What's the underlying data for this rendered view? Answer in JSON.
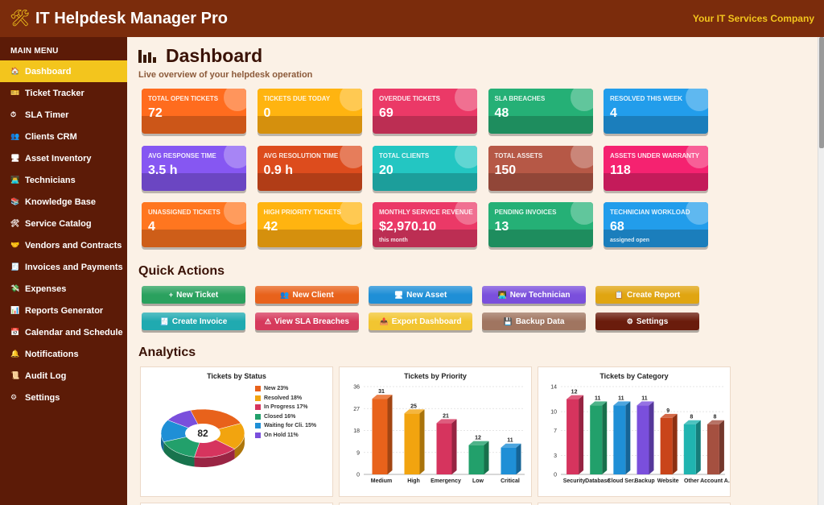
{
  "header": {
    "title": "IT Helpdesk Manager Pro",
    "company": "Your IT Services Company",
    "logo_icon": "tools-icon"
  },
  "sidebar": {
    "menu_title": "MAIN MENU",
    "items": [
      {
        "label": "Dashboard",
        "icon": "🏠",
        "active": true
      },
      {
        "label": "Ticket Tracker",
        "icon": "🎫"
      },
      {
        "label": "SLA Timer",
        "icon": "⏱"
      },
      {
        "label": "Clients CRM",
        "icon": "👥"
      },
      {
        "label": "Asset Inventory",
        "icon": "🖥"
      },
      {
        "label": "Technicians",
        "icon": "👨‍💻"
      },
      {
        "label": "Knowledge Base",
        "icon": "📚"
      },
      {
        "label": "Service Catalog",
        "icon": "🛠"
      },
      {
        "label": "Vendors and Contracts",
        "icon": "🤝"
      },
      {
        "label": "Invoices and Payments",
        "icon": "🧾"
      },
      {
        "label": "Expenses",
        "icon": "💸"
      },
      {
        "label": "Reports Generator",
        "icon": "📊"
      },
      {
        "label": "Calendar and Schedule",
        "icon": "📅"
      },
      {
        "label": "Notifications",
        "icon": "🔔"
      },
      {
        "label": "Audit Log",
        "icon": "📜"
      },
      {
        "label": "Settings",
        "icon": "⚙"
      }
    ]
  },
  "page": {
    "title": "Dashboard",
    "subtitle": "Live overview of your helpdesk operation"
  },
  "kpis": [
    {
      "label": "Total Open Tickets",
      "value": "72",
      "color": "#e8621b"
    },
    {
      "label": "Tickets Due Today",
      "value": "0",
      "color": "#f2a40f"
    },
    {
      "label": "Overdue Tickets",
      "value": "69",
      "color": "#d6345e"
    },
    {
      "label": "SLA Breaches",
      "value": "48",
      "color": "#22a06b"
    },
    {
      "label": "Resolved This Week",
      "value": "4",
      "color": "#1f8fd6"
    },
    {
      "label": "Avg Response Time",
      "value": "3.5 h",
      "color": "#7a4fdc"
    },
    {
      "label": "Avg Resolution Time",
      "value": "0.9 h",
      "color": "#c9451a"
    },
    {
      "label": "Total Clients",
      "value": "20",
      "color": "#20b4b0"
    },
    {
      "label": "Total Assets",
      "value": "150",
      "color": "#a55040"
    },
    {
      "label": "Assets Under Warranty",
      "value": "118",
      "color": "#df1f66"
    },
    {
      "label": "Unassigned Tickets",
      "value": "4",
      "color": "#ea6b1c"
    },
    {
      "label": "High Priority Tickets",
      "value": "42",
      "color": "#f2a40f"
    },
    {
      "label": "Monthly Service Revenue",
      "value": "$2,970.10",
      "color": "#d6345e",
      "note": "this month"
    },
    {
      "label": "Pending Invoices",
      "value": "13",
      "color": "#22a06b"
    },
    {
      "label": "Technician Workload",
      "value": "68",
      "color": "#1f8fd6",
      "note": "assigned open"
    }
  ],
  "quick_actions": {
    "title": "Quick Actions",
    "buttons": [
      {
        "label": "New Ticket",
        "icon": "+",
        "color": "#2aa15e"
      },
      {
        "label": "New Client",
        "icon": "👥",
        "color": "#e8621b"
      },
      {
        "label": "New Asset",
        "icon": "🖥",
        "color": "#1f8fd6"
      },
      {
        "label": "New Technician",
        "icon": "👨‍💻",
        "color": "#7a4fdc"
      },
      {
        "label": "Create Report",
        "icon": "📋",
        "color": "#e0a511"
      },
      {
        "label": "Create Invoice",
        "icon": "🧾",
        "color": "#20aab0"
      },
      {
        "label": "View SLA Breaches",
        "icon": "⚠",
        "color": "#d63a5c"
      },
      {
        "label": "Export Dashboard",
        "icon": "📤",
        "color": "#f2c531"
      },
      {
        "label": "Backup Data",
        "icon": "💾",
        "color": "#a07560"
      },
      {
        "label": "Settings",
        "icon": "⚙",
        "color": "#6a1c0c"
      }
    ]
  },
  "analytics": {
    "title": "Analytics"
  },
  "chart_data": [
    {
      "type": "pie",
      "title": "Tickets by Status",
      "center_value": "82",
      "slices": [
        {
          "name": "New",
          "pct": 23,
          "label": "New  23%",
          "color": "#e8621b"
        },
        {
          "name": "Resolved",
          "pct": 18,
          "label": "Resolved  18%",
          "color": "#f2a40f"
        },
        {
          "name": "In Progress",
          "pct": 17,
          "label": "In Progress  17%",
          "color": "#d6345e"
        },
        {
          "name": "Closed",
          "pct": 16,
          "label": "Closed  16%",
          "color": "#22a06b"
        },
        {
          "name": "Waiting for Cli.",
          "pct": 15,
          "label": "Waiting for Cli.  15%",
          "color": "#1f8fd6"
        },
        {
          "name": "On Hold",
          "pct": 11,
          "label": "On Hold  11%",
          "color": "#7a4fdc"
        }
      ]
    },
    {
      "type": "bar",
      "title": "Tickets by Priority",
      "categories": [
        "Medium",
        "High",
        "Emergency",
        "Low",
        "Critical"
      ],
      "values": [
        31,
        25,
        21,
        12,
        11
      ],
      "colors": [
        "#e8621b",
        "#f2a40f",
        "#d6345e",
        "#22a06b",
        "#1f8fd6"
      ],
      "yticks": [
        "0",
        "9",
        "18",
        "27",
        "36"
      ],
      "ylim": [
        0,
        36
      ]
    },
    {
      "type": "bar",
      "title": "Tickets by Category",
      "categories": [
        "Security",
        "Database",
        "Cloud Ser.",
        "Backup",
        "Website",
        "Other",
        "Account A."
      ],
      "values": [
        12,
        11,
        11,
        11,
        9,
        8,
        8
      ],
      "colors": [
        "#d6345e",
        "#22a06b",
        "#1f8fd6",
        "#7a4fdc",
        "#c9451a",
        "#20b4b0",
        "#a55040"
      ],
      "yticks": [
        "0",
        "3",
        "7",
        "10",
        "14"
      ],
      "ylim": [
        0,
        14
      ]
    }
  ]
}
